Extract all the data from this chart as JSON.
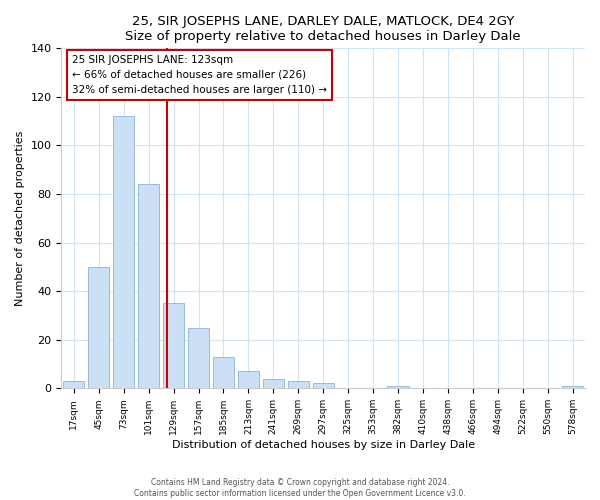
{
  "title": "25, SIR JOSEPHS LANE, DARLEY DALE, MATLOCK, DE4 2GY",
  "subtitle": "Size of property relative to detached houses in Darley Dale",
  "xlabel": "Distribution of detached houses by size in Darley Dale",
  "ylabel": "Number of detached properties",
  "bar_labels": [
    "17sqm",
    "45sqm",
    "73sqm",
    "101sqm",
    "129sqm",
    "157sqm",
    "185sqm",
    "213sqm",
    "241sqm",
    "269sqm",
    "297sqm",
    "325sqm",
    "353sqm",
    "382sqm",
    "410sqm",
    "438sqm",
    "466sqm",
    "494sqm",
    "522sqm",
    "550sqm",
    "578sqm"
  ],
  "bar_values": [
    3,
    50,
    112,
    84,
    35,
    25,
    13,
    7,
    4,
    3,
    2,
    0,
    0,
    1,
    0,
    0,
    0,
    0,
    0,
    0,
    1
  ],
  "bar_color": "#cce0f5",
  "bar_edge_color": "#8ab4d8",
  "vline_color": "#cc0000",
  "annotation_title": "25 SIR JOSEPHS LANE: 123sqm",
  "annotation_line1": "← 66% of detached houses are smaller (226)",
  "annotation_line2": "32% of semi-detached houses are larger (110) →",
  "annotation_box_edge": "#cc0000",
  "ylim": [
    0,
    140
  ],
  "yticks": [
    0,
    20,
    40,
    60,
    80,
    100,
    120,
    140
  ],
  "grid_color": "#d0e4f5",
  "footer1": "Contains HM Land Registry data © Crown copyright and database right 2024.",
  "footer2": "Contains public sector information licensed under the Open Government Licence v3.0."
}
